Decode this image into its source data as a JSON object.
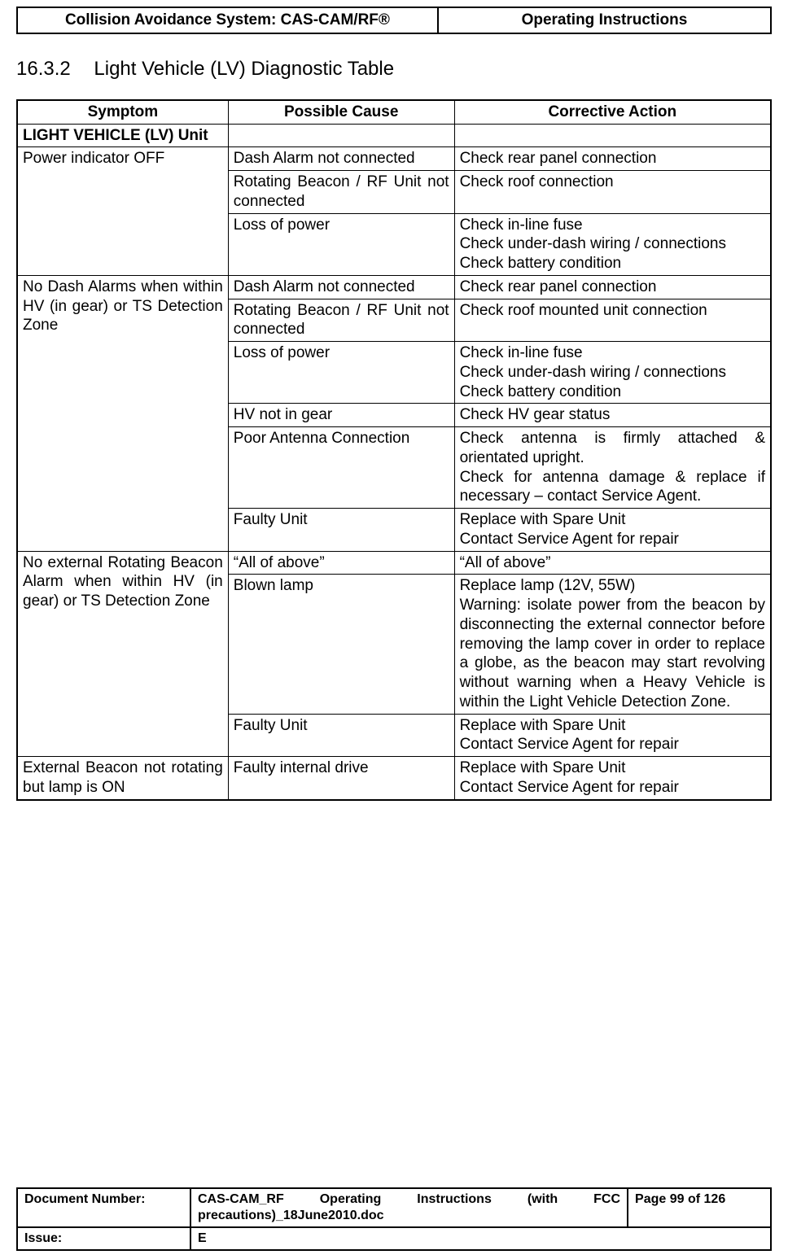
{
  "header": {
    "left": "Collision Avoidance System: CAS-CAM/RF®",
    "right": "Operating Instructions"
  },
  "section": {
    "number": "16.3.2",
    "title": "Light Vehicle (LV) Diagnostic Table"
  },
  "table": {
    "type": "table",
    "columns": [
      "Symptom",
      "Possible Cause",
      "Corrective Action"
    ],
    "col_widths_pct": [
      28,
      30,
      42
    ],
    "border_color": "#000000",
    "background_color": "#ffffff",
    "font_size_pt": 14,
    "header_font_weight": "bold",
    "groups": [
      {
        "symptom": "LIGHT VEHICLE (LV) Unit",
        "symptom_bold": true,
        "rows": [
          {
            "cause": "",
            "action": ""
          }
        ]
      },
      {
        "symptom": "Power indicator OFF",
        "rows": [
          {
            "cause": "Dash Alarm not connected",
            "action": "Check rear panel connection"
          },
          {
            "cause": "Rotating Beacon / RF Unit not connected",
            "action": "Check roof connection"
          },
          {
            "cause": "Loss of power",
            "action": "Check in-line fuse\nCheck under-dash wiring / connections\nCheck battery condition"
          }
        ]
      },
      {
        "symptom": "No Dash Alarms when within HV (in gear) or TS Detection Zone",
        "rows": [
          {
            "cause": "Dash Alarm not connected",
            "action": "Check rear panel connection"
          },
          {
            "cause": "Rotating Beacon / RF Unit not connected",
            "action": "Check roof mounted unit connection"
          },
          {
            "cause": "Loss of power",
            "action": "Check in-line fuse\nCheck under-dash wiring / connections\nCheck battery condition"
          },
          {
            "cause": "HV not in gear",
            "action": "Check HV gear status"
          },
          {
            "cause": "Poor Antenna Connection",
            "action": "Check antenna is firmly attached & orientated upright.\nCheck for antenna damage & replace if necessary – contact Service Agent."
          },
          {
            "cause": "Faulty Unit",
            "action": "Replace with Spare Unit\nContact Service Agent for repair"
          }
        ]
      },
      {
        "symptom": "No external Rotating Beacon Alarm when within HV (in gear) or TS Detection Zone",
        "rows": [
          {
            "cause": "“All of above”",
            "action": "“All of above”"
          },
          {
            "cause": "Blown lamp",
            "action": "Replace lamp (12V, 55W)\nWarning: isolate power from the beacon by disconnecting the external connector before removing the lamp cover in order to replace a globe, as the beacon may start revolving without warning when a Heavy Vehicle is within the Light Vehicle Detection Zone."
          },
          {
            "cause": "Faulty Unit",
            "action": "Replace with Spare Unit\nContact Service Agent for repair"
          }
        ]
      },
      {
        "symptom": "External Beacon not rotating but lamp is ON",
        "rows": [
          {
            "cause": "Faulty internal drive",
            "action": "Replace with Spare Unit\nContact Service Agent for repair"
          }
        ]
      }
    ]
  },
  "footer": {
    "doc_label": "Document Number:",
    "doc_value": "CAS-CAM_RF Operating Instructions (with FCC precautions)_18June2010.doc",
    "page_label_prefix": "Page ",
    "page_current": "99",
    "page_of": " of ",
    "page_total": "126",
    "issue_label": "Issue:",
    "issue_value": "E"
  }
}
